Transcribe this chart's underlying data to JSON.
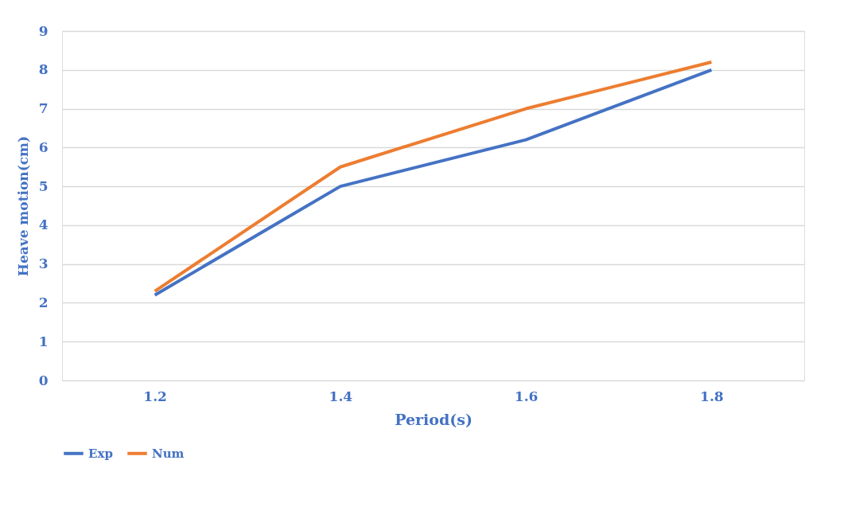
{
  "chart_data": {
    "type": "line",
    "xlabel": "Period(s)",
    "ylabel": "Heave motion(cm)",
    "categories": [
      "1.2",
      "1.4",
      "1.6",
      "1.8"
    ],
    "series": [
      {
        "name": "Exp",
        "color": "#4472c4",
        "values": [
          2.2,
          5.0,
          6.2,
          8.0
        ]
      },
      {
        "name": "Num",
        "color": "#ed7d31",
        "values": [
          2.3,
          5.5,
          7.0,
          8.2
        ]
      }
    ],
    "ylim": [
      0,
      9
    ],
    "yticks": [
      0,
      1,
      2,
      3,
      4,
      5,
      6,
      7,
      8,
      9
    ],
    "grid": "y",
    "legend": "bottom",
    "marker": "none",
    "line_style": "solid"
  }
}
